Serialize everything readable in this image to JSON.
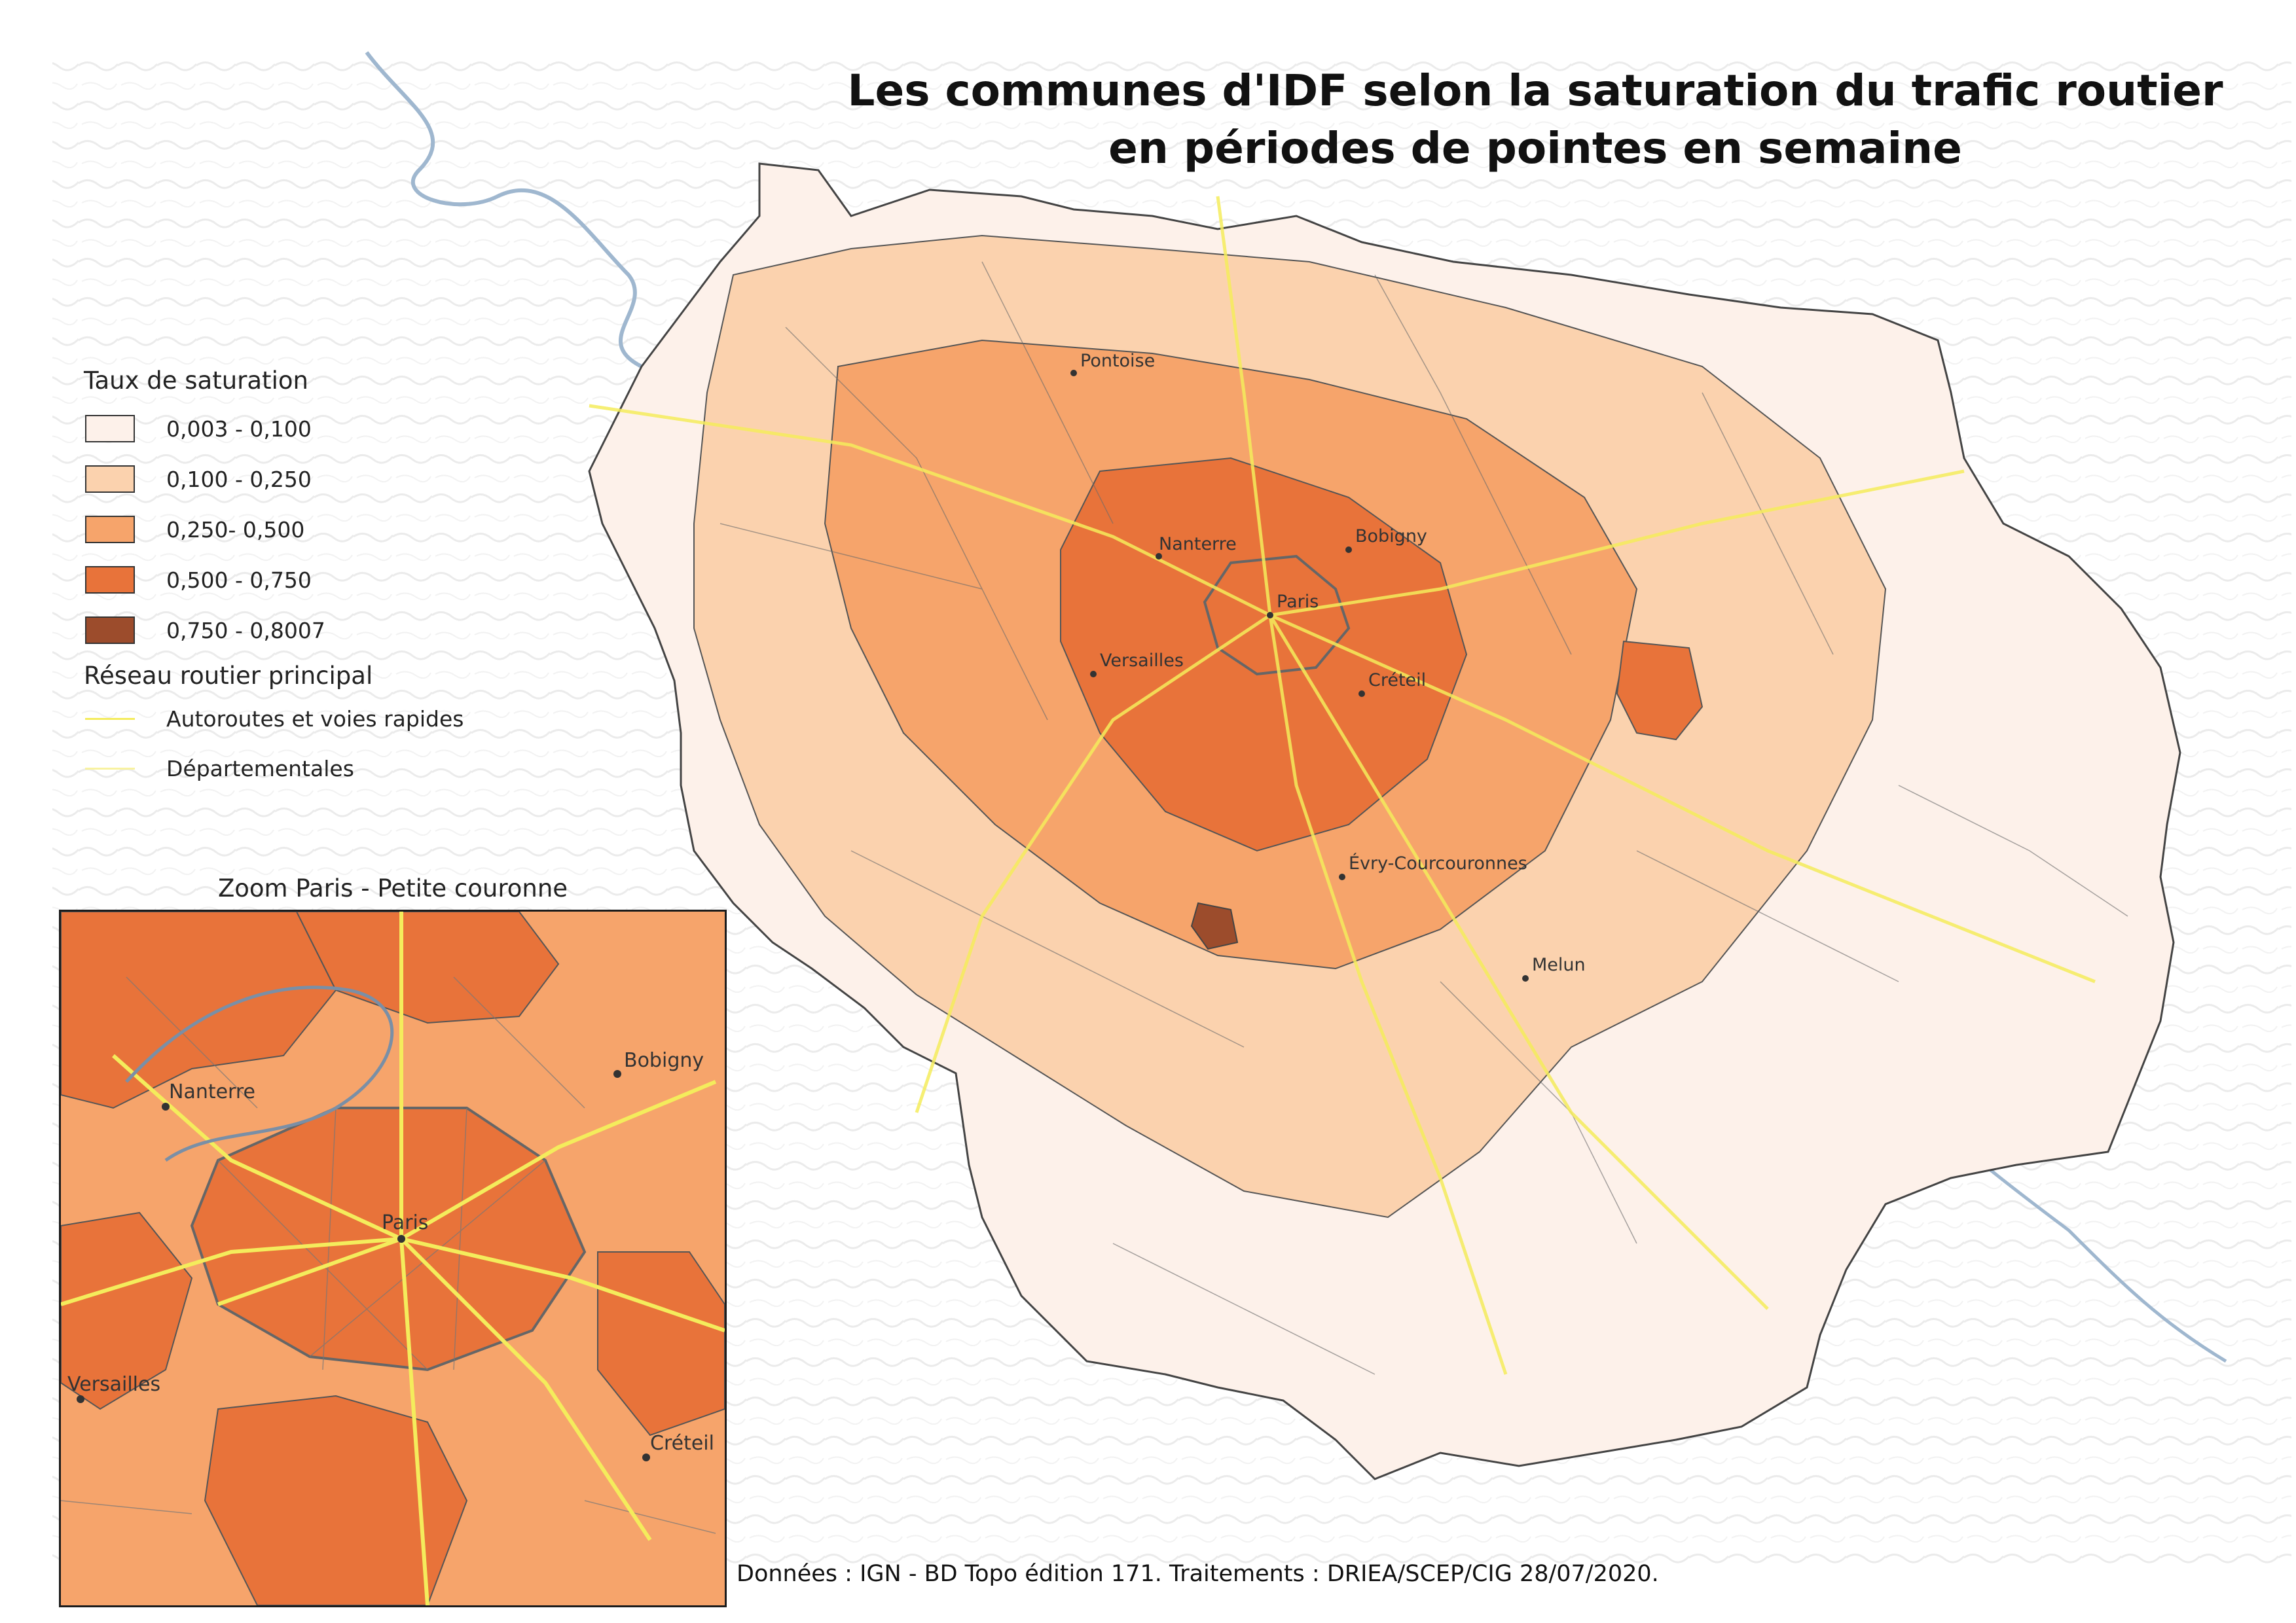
{
  "title_line1": "Les communes d'IDF selon la saturation du trafic routier",
  "title_line2": "en périodes de pointes en semaine",
  "legend": {
    "saturation_heading": "Taux de saturation",
    "classes": [
      {
        "label": "0,003 - 0,100",
        "color": "#fdf1ea"
      },
      {
        "label": "0,100 - 0,250",
        "color": "#fbd2ae"
      },
      {
        "label": "0,250- 0,500",
        "color": "#f6a46b"
      },
      {
        "label": "0,500 - 0,750",
        "color": "#e8733a"
      },
      {
        "label": "0,750 - 0,8007",
        "color": "#9c4c2c"
      }
    ],
    "roads_heading": "Réseau routier principal",
    "roads": [
      {
        "label": "Autoroutes et voies rapides",
        "color": "#f4ec5c"
      },
      {
        "label": "Départementales",
        "color": "#f8f2a0"
      }
    ]
  },
  "inset": {
    "title": "Zoom Paris - Petite couronne",
    "cities": [
      "Nanterre",
      "Bobigny",
      "Paris",
      "Versailles",
      "Créteil"
    ]
  },
  "main_map": {
    "cities": [
      "Pontoise",
      "Nanterre",
      "Bobigny",
      "Paris",
      "Versailles",
      "Créteil",
      "Évry-Courcouronnes",
      "Melun"
    ]
  },
  "source": "Données : IGN - BD Topo édition 171. Traitements : DRIEA/SCEP/CIG 28/07/2020."
}
